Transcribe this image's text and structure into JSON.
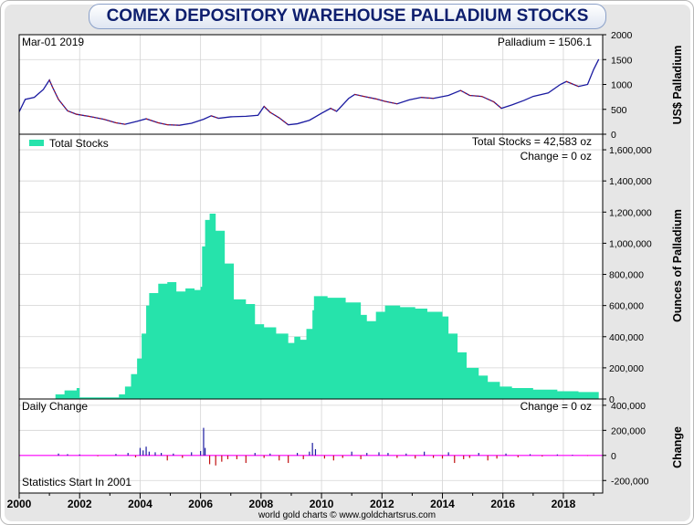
{
  "title": "COMEX DEPOSITORY WAREHOUSE PALLADIUM STOCKS",
  "footer": "world gold charts © www.goldchartsrus.com",
  "colors": {
    "stocks_fill": "#26e3ab",
    "price_line": "#1a1aa0",
    "price_down": "#c01010",
    "change_up": "#1a1aa0",
    "change_down": "#c01010",
    "zero_line": "#ff00ff",
    "title_text": "#0e1f6e"
  },
  "chart_data": [
    {
      "type": "line",
      "panel": "price",
      "date_label": "Mar-01  2019",
      "value_label": "Palladium = 1506.1",
      "ylabel": "US$ Palladium",
      "ylim": [
        0,
        2000
      ],
      "yticks": [
        "0",
        "500",
        "1000",
        "1500",
        "2000"
      ],
      "grid": true,
      "series": [
        {
          "x": [
            2000.0,
            2000.2,
            2000.5,
            2000.8,
            2001.0,
            2001.1,
            2001.3,
            2001.6,
            2001.9,
            2002.3,
            2002.8,
            2003.2,
            2003.5,
            2003.9,
            2004.2,
            2004.6,
            2004.9,
            2005.3,
            2005.7,
            2006.1,
            2006.35,
            2006.6,
            2007.0,
            2007.5,
            2007.9,
            2008.1,
            2008.3,
            2008.6,
            2008.9,
            2009.2,
            2009.6,
            2010.0,
            2010.3,
            2010.5,
            2010.9,
            2011.1,
            2011.4,
            2011.8,
            2012.1,
            2012.5,
            2012.9,
            2013.3,
            2013.7,
            2014.2,
            2014.6,
            2014.9,
            2015.3,
            2015.7,
            2015.95,
            2016.3,
            2016.7,
            2017.0,
            2017.5,
            2017.9,
            2018.1,
            2018.5,
            2018.8,
            2019.0,
            2019.17
          ],
          "values": [
            450,
            700,
            740,
            900,
            1090,
            950,
            700,
            470,
            400,
            360,
            300,
            230,
            200,
            260,
            310,
            230,
            190,
            180,
            220,
            300,
            370,
            320,
            350,
            360,
            380,
            560,
            440,
            330,
            190,
            210,
            280,
            420,
            520,
            460,
            720,
            800,
            760,
            710,
            660,
            610,
            690,
            740,
            720,
            780,
            880,
            780,
            760,
            650,
            520,
            590,
            680,
            760,
            830,
            1000,
            1060,
            960,
            1000,
            1300,
            1506
          ]
        }
      ]
    },
    {
      "type": "area",
      "panel": "stocks",
      "legend": [
        "Total Stocks"
      ],
      "legend_placement": "top-left",
      "value_label": "Total Stocks = 42,583 oz",
      "change_label": "Change = 0 oz",
      "ylabel": "Ounces of Palladium",
      "ylim": [
        0,
        1700000
      ],
      "yticks": [
        "0",
        "200,000",
        "400,000",
        "600,000",
        "800,000",
        "1,000,000",
        "1,200,000",
        "1,400,000",
        "1,600,000"
      ],
      "grid": true,
      "series": [
        {
          "name": "Total Stocks",
          "x": [
            2001.2,
            2001.5,
            2001.9,
            2002.0,
            2002.7,
            2003.3,
            2003.5,
            2003.7,
            2003.9,
            2004.05,
            2004.2,
            2004.3,
            2004.6,
            2004.9,
            2005.2,
            2005.5,
            2005.8,
            2006.0,
            2006.05,
            2006.15,
            2006.3,
            2006.5,
            2006.8,
            2007.1,
            2007.5,
            2007.8,
            2008.1,
            2008.5,
            2008.9,
            2009.1,
            2009.3,
            2009.5,
            2009.7,
            2009.75,
            2010.2,
            2010.8,
            2011.3,
            2011.5,
            2011.8,
            2012.1,
            2012.6,
            2013.1,
            2013.5,
            2014.0,
            2014.2,
            2014.5,
            2014.8,
            2015.2,
            2015.5,
            2015.9,
            2016.3,
            2017.0,
            2017.8,
            2018.5,
            2019.17
          ],
          "values": [
            30000,
            55000,
            70000,
            10000,
            10000,
            30000,
            80000,
            160000,
            260000,
            420000,
            600000,
            680000,
            740000,
            750000,
            690000,
            710000,
            700000,
            720000,
            980000,
            1150000,
            1190000,
            1080000,
            870000,
            640000,
            610000,
            480000,
            460000,
            420000,
            360000,
            400000,
            380000,
            450000,
            570000,
            660000,
            650000,
            620000,
            540000,
            500000,
            560000,
            600000,
            590000,
            580000,
            560000,
            530000,
            420000,
            300000,
            200000,
            150000,
            110000,
            80000,
            70000,
            60000,
            50000,
            45000,
            42583
          ]
        }
      ]
    },
    {
      "type": "bar",
      "panel": "change",
      "title_label": "Daily Change",
      "value_label": "Change = 0 oz",
      "note": "Statistics Start In 2001",
      "ylabel": "Change",
      "ylim": [
        -300000,
        450000
      ],
      "yticks": [
        "-200,000",
        "0",
        "200,000",
        "400,000"
      ],
      "grid": true,
      "series": [
        {
          "name": "Daily Change",
          "x": [
            2001.3,
            2001.6,
            2002.0,
            2002.6,
            2003.2,
            2003.6,
            2003.85,
            2004.0,
            2004.1,
            2004.2,
            2004.3,
            2004.5,
            2004.7,
            2004.9,
            2005.1,
            2005.4,
            2005.7,
            2006.0,
            2006.1,
            2006.15,
            2006.3,
            2006.5,
            2006.7,
            2006.9,
            2007.2,
            2007.5,
            2007.8,
            2008.1,
            2008.3,
            2008.6,
            2008.9,
            2009.2,
            2009.4,
            2009.6,
            2009.7,
            2009.8,
            2010.1,
            2010.4,
            2010.7,
            2011.0,
            2011.3,
            2011.5,
            2011.9,
            2012.2,
            2012.5,
            2012.8,
            2013.1,
            2013.4,
            2013.7,
            2014.0,
            2014.2,
            2014.4,
            2014.7,
            2014.9,
            2015.2,
            2015.5,
            2015.8,
            2016.1,
            2016.5,
            2016.9,
            2017.3,
            2017.8,
            2018.3,
            2018.8
          ],
          "values": [
            15000,
            10000,
            8000,
            -6000,
            12000,
            20000,
            -15000,
            60000,
            40000,
            70000,
            30000,
            25000,
            20000,
            -40000,
            15000,
            -20000,
            25000,
            35000,
            220000,
            60000,
            -70000,
            -80000,
            -50000,
            -30000,
            -30000,
            -60000,
            20000,
            -20000,
            15000,
            -40000,
            -60000,
            20000,
            -30000,
            30000,
            100000,
            50000,
            -25000,
            -40000,
            -20000,
            30000,
            -30000,
            20000,
            25000,
            20000,
            -20000,
            15000,
            -25000,
            30000,
            -20000,
            -25000,
            25000,
            -60000,
            -30000,
            -20000,
            20000,
            -40000,
            -25000,
            15000,
            -15000,
            10000,
            -8000,
            8000,
            5000,
            -3000
          ]
        }
      ]
    },
    {
      "type": "axis",
      "panel": "x-axis",
      "xlim": [
        2000,
        2019.3
      ],
      "xticks": [
        "2000",
        "2002",
        "2004",
        "2006",
        "2008",
        "2010",
        "2012",
        "2014",
        "2016",
        "2018"
      ]
    }
  ]
}
